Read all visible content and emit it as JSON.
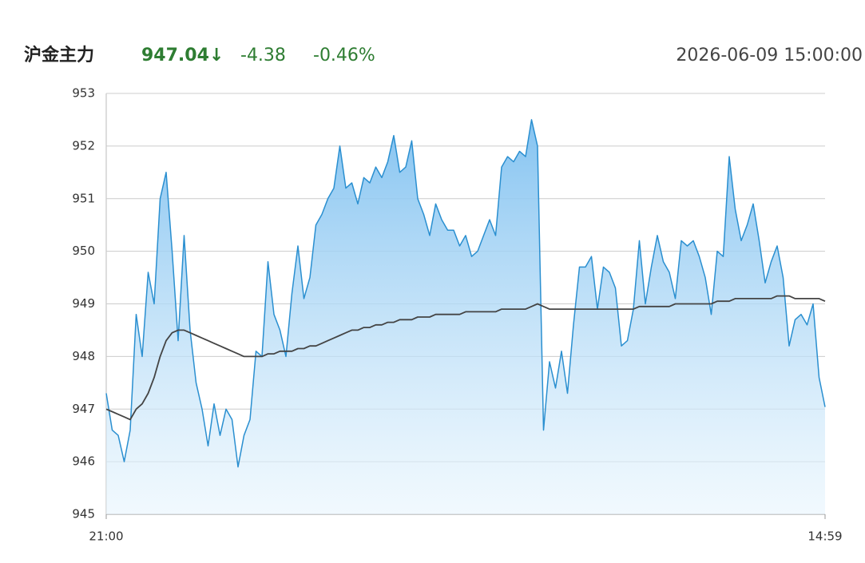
{
  "header": {
    "title": "沪金主力",
    "price": "947.04↓",
    "change": "-4.38",
    "change_pct": "-0.46%",
    "time": "2026-06-09 15:00:00"
  },
  "chart_data": {
    "type": "line",
    "area": true,
    "grid": true,
    "categories": [
      "21:00",
      null,
      null,
      null,
      null,
      null,
      null,
      null,
      null,
      null,
      null,
      null,
      null,
      null,
      null,
      null,
      null,
      null,
      null,
      null,
      null,
      null,
      null,
      null,
      null,
      null,
      null,
      null,
      null,
      null,
      null,
      null,
      null,
      null,
      null,
      null,
      null,
      null,
      null,
      null,
      null,
      null,
      null,
      null,
      null,
      null,
      null,
      null,
      null,
      null,
      null,
      null,
      null,
      null,
      null,
      null,
      null,
      null,
      null,
      null,
      null,
      null,
      null,
      null,
      null,
      null,
      null,
      null,
      null,
      null,
      null,
      null,
      null,
      null,
      null,
      null,
      null,
      null,
      null,
      null,
      null,
      null,
      null,
      null,
      null,
      null,
      null,
      null,
      null,
      null,
      null,
      null,
      null,
      null,
      null,
      null,
      null,
      null,
      null,
      null,
      null,
      null,
      null,
      null,
      null,
      null,
      null,
      null,
      null,
      null,
      null,
      null,
      null,
      null,
      null,
      null,
      null,
      null,
      null,
      null,
      "14:59"
    ],
    "series": [
      {
        "name": "price",
        "color": "#2a8fd0",
        "values": [
          947.3,
          946.6,
          946.5,
          946.0,
          946.6,
          948.8,
          948.0,
          949.6,
          949.0,
          951.0,
          951.5,
          950.0,
          948.3,
          950.3,
          948.5,
          947.5,
          947.0,
          946.3,
          947.1,
          946.5,
          947.0,
          946.8,
          945.9,
          946.5,
          946.8,
          948.1,
          948.0,
          949.8,
          948.8,
          948.5,
          948.0,
          949.2,
          950.1,
          949.1,
          949.5,
          950.5,
          950.7,
          951.0,
          951.2,
          952.0,
          951.2,
          951.3,
          950.9,
          951.4,
          951.3,
          951.6,
          951.4,
          951.7,
          952.2,
          951.5,
          951.6,
          952.1,
          951.0,
          950.7,
          950.3,
          950.9,
          950.6,
          950.4,
          950.4,
          950.1,
          950.3,
          949.9,
          950.0,
          950.3,
          950.6,
          950.3,
          951.6,
          951.8,
          951.7,
          951.9,
          951.8,
          952.5,
          952.0,
          946.6,
          947.9,
          947.4,
          948.1,
          947.3,
          948.6,
          949.7,
          949.7,
          949.9,
          948.9,
          949.7,
          949.6,
          949.3,
          948.2,
          948.3,
          948.9,
          950.2,
          949.0,
          949.7,
          950.3,
          949.8,
          949.6,
          949.1,
          950.2,
          950.1,
          950.2,
          949.9,
          949.5,
          948.8,
          950.0,
          949.9,
          951.8,
          950.8,
          950.2,
          950.5,
          950.9,
          950.2,
          949.4,
          949.8,
          950.1,
          949.5,
          948.2,
          948.7,
          948.8,
          948.6,
          949.0,
          947.6,
          947.04
        ]
      },
      {
        "name": "average",
        "color": "#444444",
        "values": [
          947.0,
          946.95,
          946.9,
          946.85,
          946.8,
          947.0,
          947.1,
          947.3,
          947.6,
          948.0,
          948.3,
          948.45,
          948.5,
          948.5,
          948.45,
          948.4,
          948.35,
          948.3,
          948.25,
          948.2,
          948.15,
          948.1,
          948.05,
          948.0,
          948.0,
          948.0,
          948.0,
          948.05,
          948.05,
          948.1,
          948.1,
          948.1,
          948.15,
          948.15,
          948.2,
          948.2,
          948.25,
          948.3,
          948.35,
          948.4,
          948.45,
          948.5,
          948.5,
          948.55,
          948.55,
          948.6,
          948.6,
          948.65,
          948.65,
          948.7,
          948.7,
          948.7,
          948.75,
          948.75,
          948.75,
          948.8,
          948.8,
          948.8,
          948.8,
          948.8,
          948.85,
          948.85,
          948.85,
          948.85,
          948.85,
          948.85,
          948.9,
          948.9,
          948.9,
          948.9,
          948.9,
          948.95,
          949.0,
          948.95,
          948.9,
          948.9,
          948.9,
          948.9,
          948.9,
          948.9,
          948.9,
          948.9,
          948.9,
          948.9,
          948.9,
          948.9,
          948.9,
          948.9,
          948.9,
          948.95,
          948.95,
          948.95,
          948.95,
          948.95,
          948.95,
          949.0,
          949.0,
          949.0,
          949.0,
          949.0,
          949.0,
          949.0,
          949.05,
          949.05,
          949.05,
          949.1,
          949.1,
          949.1,
          949.1,
          949.1,
          949.1,
          949.1,
          949.15,
          949.15,
          949.15,
          949.1,
          949.1,
          949.1,
          949.1,
          949.1,
          949.05
        ]
      }
    ],
    "ylim": [
      945,
      953
    ],
    "yticks": [
      945,
      946,
      947,
      948,
      949,
      950,
      951,
      952,
      953
    ]
  }
}
